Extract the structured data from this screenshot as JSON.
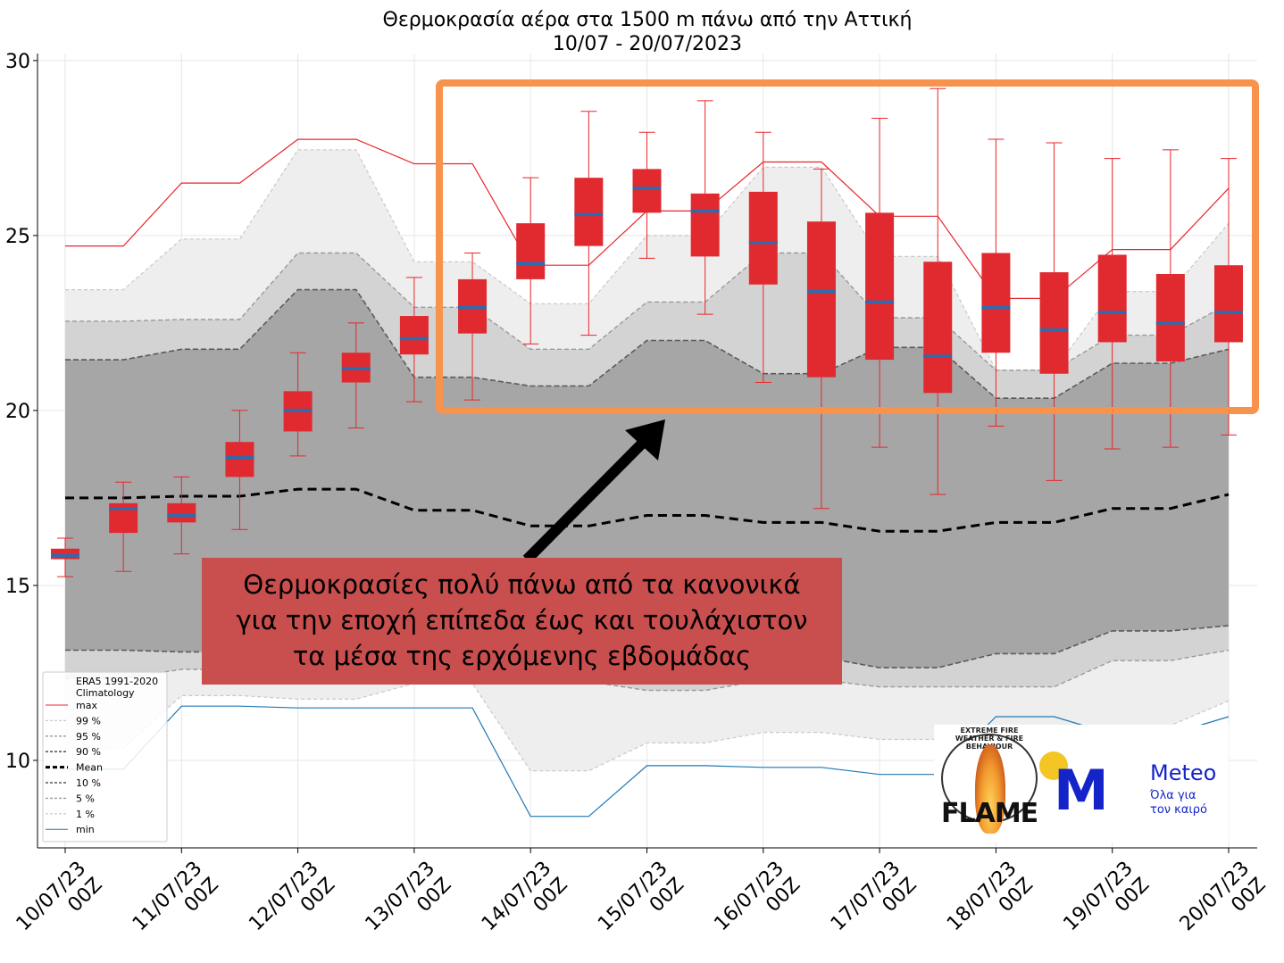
{
  "chart_data": {
    "type": "box",
    "title_line1": "Θερμοκρασία αέρα στα 1500 m πάνω από την Αττική",
    "title_line2": "10/07 - 20/07/2023",
    "xlabel": "",
    "ylabel": "",
    "ylim": [
      7.5,
      30.2
    ],
    "yticks": [
      10,
      15,
      20,
      25,
      30
    ],
    "xticks": [
      {
        "date": "10/07/23",
        "hour": "00Z"
      },
      {
        "date": "11/07/23",
        "hour": "00Z"
      },
      {
        "date": "12/07/23",
        "hour": "00Z"
      },
      {
        "date": "13/07/23",
        "hour": "00Z"
      },
      {
        "date": "14/07/23",
        "hour": "00Z"
      },
      {
        "date": "15/07/23",
        "hour": "00Z"
      },
      {
        "date": "16/07/23",
        "hour": "00Z"
      },
      {
        "date": "17/07/23",
        "hour": "00Z"
      },
      {
        "date": "18/07/23",
        "hour": "00Z"
      },
      {
        "date": "19/07/23",
        "hour": "00Z"
      },
      {
        "date": "20/07/23",
        "hour": "00Z"
      }
    ],
    "grid": true,
    "legend_position": "lower-left",
    "climatology_x": [
      0,
      0.5,
      1,
      1.5,
      2,
      2.5,
      3,
      3.5,
      4,
      4.5,
      5,
      5.5,
      6,
      6.5,
      7,
      7.5,
      8,
      8.5,
      9,
      9.5,
      10
    ],
    "climatology": {
      "max": [
        24.7,
        24.7,
        26.5,
        26.5,
        27.75,
        27.75,
        27.05,
        27.05,
        24.15,
        24.15,
        25.7,
        25.7,
        27.1,
        27.1,
        25.55,
        25.55,
        23.2,
        23.2,
        24.6,
        24.6,
        26.35
      ],
      "p99": [
        23.45,
        23.45,
        24.9,
        24.9,
        27.45,
        27.45,
        24.25,
        24.25,
        23.05,
        23.05,
        25.0,
        25.0,
        26.95,
        26.95,
        24.4,
        24.4,
        21.15,
        21.15,
        23.4,
        23.4,
        25.35
      ],
      "p95": [
        22.55,
        22.55,
        22.6,
        22.6,
        24.5,
        24.5,
        22.95,
        22.95,
        21.75,
        21.75,
        23.1,
        23.1,
        24.5,
        24.5,
        22.65,
        22.65,
        21.15,
        21.15,
        22.15,
        22.15,
        23.05
      ],
      "p90": [
        21.45,
        21.45,
        21.75,
        21.75,
        23.45,
        23.45,
        20.95,
        20.95,
        20.7,
        20.7,
        22.0,
        22.0,
        21.05,
        21.05,
        21.8,
        21.8,
        20.35,
        20.35,
        21.35,
        21.35,
        21.75
      ],
      "mean": [
        17.5,
        17.5,
        17.55,
        17.55,
        17.75,
        17.75,
        17.15,
        17.15,
        16.7,
        16.7,
        17.0,
        17.0,
        16.8,
        16.8,
        16.55,
        16.55,
        16.8,
        16.8,
        17.2,
        17.2,
        17.6
      ],
      "p10": [
        13.15,
        13.15,
        13.1,
        13.1,
        13.1,
        13.1,
        13.1,
        13.1,
        13.1,
        13.1,
        13.1,
        13.1,
        12.95,
        12.95,
        12.65,
        12.65,
        13.05,
        13.05,
        13.7,
        13.7,
        13.85
      ],
      "p5": [
        12.35,
        12.35,
        12.6,
        12.6,
        12.55,
        12.55,
        12.5,
        12.5,
        12.25,
        12.25,
        12.0,
        12.0,
        12.3,
        12.3,
        12.1,
        12.1,
        12.1,
        12.1,
        12.85,
        12.85,
        13.15
      ],
      "p1": [
        10.35,
        10.35,
        11.85,
        11.85,
        11.75,
        11.75,
        12.2,
        12.2,
        9.7,
        9.7,
        10.5,
        10.5,
        10.8,
        10.8,
        10.6,
        10.6,
        10.6,
        10.6,
        11.0,
        11.0,
        11.7
      ],
      "min": [
        9.75,
        9.75,
        11.55,
        11.55,
        11.5,
        11.5,
        11.5,
        11.5,
        8.4,
        8.4,
        9.85,
        9.85,
        9.8,
        9.8,
        9.6,
        9.6,
        11.25,
        11.25,
        10.75,
        10.75,
        11.25
      ]
    },
    "boxes": [
      {
        "x": 0.0,
        "whislo": 15.25,
        "q1": 15.75,
        "med": 15.85,
        "q3": 16.05,
        "whishi": 16.35
      },
      {
        "x": 0.5,
        "whislo": 15.4,
        "q1": 16.5,
        "med": 17.2,
        "q3": 17.35,
        "whishi": 17.95
      },
      {
        "x": 1.0,
        "whislo": 15.9,
        "q1": 16.8,
        "med": 17.0,
        "q3": 17.35,
        "whishi": 18.1
      },
      {
        "x": 1.5,
        "whislo": 16.6,
        "q1": 18.1,
        "med": 18.65,
        "q3": 19.1,
        "whishi": 20.0
      },
      {
        "x": 2.0,
        "whislo": 18.7,
        "q1": 19.4,
        "med": 20.0,
        "q3": 20.55,
        "whishi": 21.65
      },
      {
        "x": 2.5,
        "whislo": 19.5,
        "q1": 20.8,
        "med": 21.2,
        "q3": 21.65,
        "whishi": 22.5
      },
      {
        "x": 3.0,
        "whislo": 20.25,
        "q1": 21.6,
        "med": 22.05,
        "q3": 22.7,
        "whishi": 23.8
      },
      {
        "x": 3.5,
        "whislo": 20.3,
        "q1": 22.2,
        "med": 22.95,
        "q3": 23.75,
        "whishi": 24.5
      },
      {
        "x": 4.0,
        "whislo": 21.9,
        "q1": 23.75,
        "med": 24.2,
        "q3": 25.35,
        "whishi": 26.65
      },
      {
        "x": 4.5,
        "whislo": 22.15,
        "q1": 24.7,
        "med": 25.6,
        "q3": 26.65,
        "whishi": 28.55
      },
      {
        "x": 5.0,
        "whislo": 24.35,
        "q1": 25.65,
        "med": 26.35,
        "q3": 26.9,
        "whishi": 27.95
      },
      {
        "x": 5.5,
        "whislo": 22.75,
        "q1": 24.4,
        "med": 25.7,
        "q3": 26.2,
        "whishi": 28.85
      },
      {
        "x": 6.0,
        "whislo": 20.8,
        "q1": 23.6,
        "med": 24.8,
        "q3": 26.25,
        "whishi": 27.95
      },
      {
        "x": 6.5,
        "whislo": 17.2,
        "q1": 20.95,
        "med": 23.4,
        "q3": 25.4,
        "whishi": 26.9
      },
      {
        "x": 7.0,
        "whislo": 18.95,
        "q1": 21.45,
        "med": 23.1,
        "q3": 25.65,
        "whishi": 28.35
      },
      {
        "x": 7.5,
        "whislo": 17.6,
        "q1": 20.5,
        "med": 21.55,
        "q3": 24.25,
        "whishi": 29.2
      },
      {
        "x": 8.0,
        "whislo": 19.55,
        "q1": 21.65,
        "med": 22.95,
        "q3": 24.5,
        "whishi": 27.75
      },
      {
        "x": 8.5,
        "whislo": 18.0,
        "q1": 21.05,
        "med": 22.3,
        "q3": 23.95,
        "whishi": 27.65
      },
      {
        "x": 9.0,
        "whislo": 18.9,
        "q1": 21.95,
        "med": 22.8,
        "q3": 24.45,
        "whishi": 27.2
      },
      {
        "x": 9.5,
        "whislo": 18.95,
        "q1": 21.4,
        "med": 22.5,
        "q3": 23.9,
        "whishi": 27.45
      },
      {
        "x": 10.0,
        "whislo": 19.3,
        "q1": 21.95,
        "med": 22.8,
        "q3": 24.15,
        "whishi": 27.2
      }
    ],
    "colors": {
      "max": "#e8262b",
      "min": "#1f77b4",
      "box": "#e02a2f",
      "median": "#2a6cb0",
      "band_p1_p99": "#eeeeee",
      "band_p5_p95": "#d3d3d3",
      "band_p10_p90": "#a6a6a6",
      "highlight": "#f7934c"
    },
    "legend": {
      "title_line1": "ERA5 1991-2020",
      "title_line2": "Climatology",
      "entries": [
        {
          "label": "max",
          "style": "solid-red"
        },
        {
          "label": "99 %",
          "style": "dashed-light"
        },
        {
          "label": "95 %",
          "style": "dashed-mid"
        },
        {
          "label": "90 %",
          "style": "dashed-dark"
        },
        {
          "label": "Mean",
          "style": "dashed-black"
        },
        {
          "label": "10 %",
          "style": "dashed-dark"
        },
        {
          "label": "5 %",
          "style": "dashed-mid"
        },
        {
          "label": " 1 %",
          "style": "dashed-light"
        },
        {
          "label": " min",
          "style": "solid-blue"
        }
      ]
    }
  },
  "annotation": {
    "line1": "Θερμοκρασίες πολύ πάνω από τα κανονικά",
    "line2": "για την εποχή επίπεδα έως και τουλάχιστον",
    "line3": "τα μέσα της ερχόμενης εβδομάδας"
  },
  "logos": {
    "flame_text": "FLAME",
    "flame_ring_text": "EXTREME FIRE WEATHER & FIRE BEHAVIOUR",
    "meteo_name": "Meteo",
    "meteo_tagline1": "Όλα για",
    "meteo_tagline2": "τον καιρό"
  }
}
